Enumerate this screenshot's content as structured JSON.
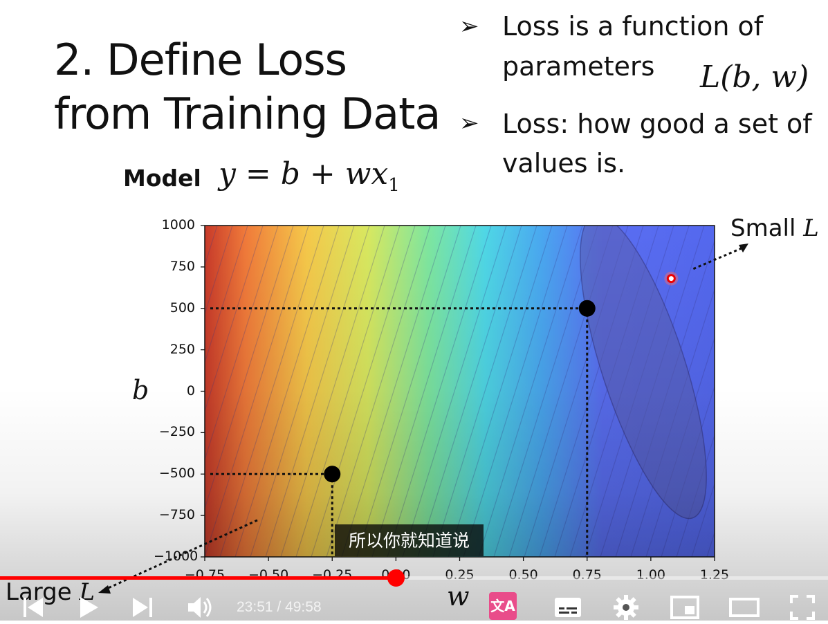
{
  "slide": {
    "title_line1": "2. Define Loss",
    "title_line2": "from Training Data",
    "bullet1_line1": "Loss is a function of",
    "bullet1_line2": "parameters",
    "loss_function": "L(b, w)",
    "bullet2_line1": "Loss: how good a set of",
    "bullet2_line2": "values is.",
    "model_label": "Model",
    "model_equation": "y = b + wx",
    "model_subscript": "1",
    "bullet_glyph": "➢"
  },
  "chart_data": {
    "type": "contour",
    "xlabel": "w",
    "ylabel": "b",
    "xlim": [
      -0.75,
      1.25
    ],
    "ylim": [
      -1000,
      1000
    ],
    "x_ticks": [
      "−0.75",
      "−0.50",
      "−0.25",
      "0.00",
      "0.25",
      "0.50",
      "0.75",
      "1.00",
      "1.25"
    ],
    "y_ticks": [
      "1000",
      "750",
      "500",
      "250",
      "0",
      "−250",
      "−500",
      "−750",
      "−1000"
    ],
    "colormap": "jet (red = large loss, blue = small loss)",
    "points": [
      {
        "w": 0.75,
        "b": 500,
        "marker": "black-dot"
      },
      {
        "w": -0.25,
        "b": -500,
        "marker": "black-dot"
      },
      {
        "w": 1.08,
        "b": 680,
        "marker": "red-dot-minimum"
      }
    ],
    "annotations": [
      {
        "text": "Small",
        "math": "L",
        "points_to": "red-dot-minimum"
      },
      {
        "text": "Large",
        "math": "L",
        "points_to": "bottom-left-region"
      }
    ]
  },
  "player": {
    "caption": "所以你就知道说",
    "time_current": "23:51",
    "time_total": "49:58",
    "time_display": "23:51 / 49:58",
    "progress_fraction": 0.4776,
    "accent_color": "#ff0000",
    "controls": [
      "previous-icon",
      "play-icon",
      "next-icon",
      "volume-icon",
      "translate-icon",
      "subtitles-icon",
      "settings-icon",
      "miniplayer-icon",
      "theater-icon",
      "fullscreen-icon"
    ]
  }
}
